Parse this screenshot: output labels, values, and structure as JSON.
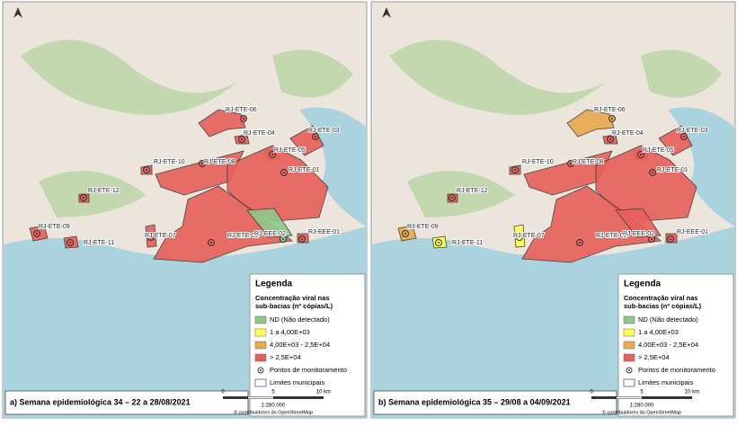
{
  "panels": [
    {
      "caption": "a) Semana epidemiológica 34 – 22 a 28/08/2021",
      "stations": [
        {
          "label": "RJ-ETE-06",
          "color": "#e8605a"
        },
        {
          "label": "RJ-ETE-04",
          "color": "#e8605a"
        },
        {
          "label": "RJ-ETE-05",
          "color": "#e8605a"
        },
        {
          "label": "RJ-ETE-03",
          "color": "#e8605a"
        },
        {
          "label": "RJ-ETE-10",
          "color": "#e8605a"
        },
        {
          "label": "RJ-ETE-08",
          "color": "#e8605a"
        },
        {
          "label": "RJ-ETE-01",
          "color": "#e8605a"
        },
        {
          "label": "RJ-ETE-12",
          "color": "#e8605a"
        },
        {
          "label": "RJ-ETE-09",
          "color": "#e8605a"
        },
        {
          "label": "RJ-ETE-07",
          "color": "#e8605a"
        },
        {
          "label": "RJ-ETE-02",
          "color": "#e8605a"
        },
        {
          "label": "RJ-EEE-02",
          "color": "#8fc98a"
        },
        {
          "label": "RJ-EEE-01",
          "color": "#e8605a"
        },
        {
          "label": "RJ-ETE-11",
          "color": "#e8605a"
        }
      ]
    },
    {
      "caption": "b) Semana epidemiológica 35 – 29/08 a 04/09/2021",
      "stations": [
        {
          "label": "RJ-ETE-06",
          "color": "#e9a94c"
        },
        {
          "label": "RJ-ETE-04",
          "color": "#e8605a"
        },
        {
          "label": "RJ-ETE-05",
          "color": "#e8605a"
        },
        {
          "label": "RJ-ETE-03",
          "color": "#e8605a"
        },
        {
          "label": "RJ-ETE-10",
          "color": "#e8605a"
        },
        {
          "label": "RJ-ETE-08",
          "color": "#e8605a"
        },
        {
          "label": "RJ-ETE-01",
          "color": "#e8605a"
        },
        {
          "label": "RJ-ETE-12",
          "color": "#e8605a"
        },
        {
          "label": "RJ-ETE-09",
          "color": "#e9a94c"
        },
        {
          "label": "RJ-ETE-07",
          "color": "#ffff4d"
        },
        {
          "label": "RJ-ETE-02",
          "color": "#e8605a"
        },
        {
          "label": "RJ-EEE-02",
          "color": "#e8605a"
        },
        {
          "label": "RJ-EEE-01",
          "color": "#e8605a"
        },
        {
          "label": "RJ-ETE-11",
          "color": "#ffff4d"
        }
      ]
    }
  ],
  "legend": {
    "title": "Legenda",
    "subtitle": [
      "Concentração viral nas",
      "sub-bacias (nº cópias/L)"
    ],
    "classes": [
      {
        "label": "ND (Não detectado)",
        "color": "#8fc98a"
      },
      {
        "label": "1 a 4,00E+03",
        "color": "#ffff4d"
      },
      {
        "label": "4,00E+03 - 2,5E+04",
        "color": "#e9a94c"
      },
      {
        "label": "> 2,5E+04",
        "color": "#e8605a"
      }
    ],
    "points": "Pontos de monitoramento",
    "limits": "Limites municipais"
  },
  "scale": {
    "ticks": [
      "0",
      "5",
      "10 km"
    ],
    "ratio": "1:280.000",
    "credit": "© contribuidores do OpenStreetMap"
  }
}
